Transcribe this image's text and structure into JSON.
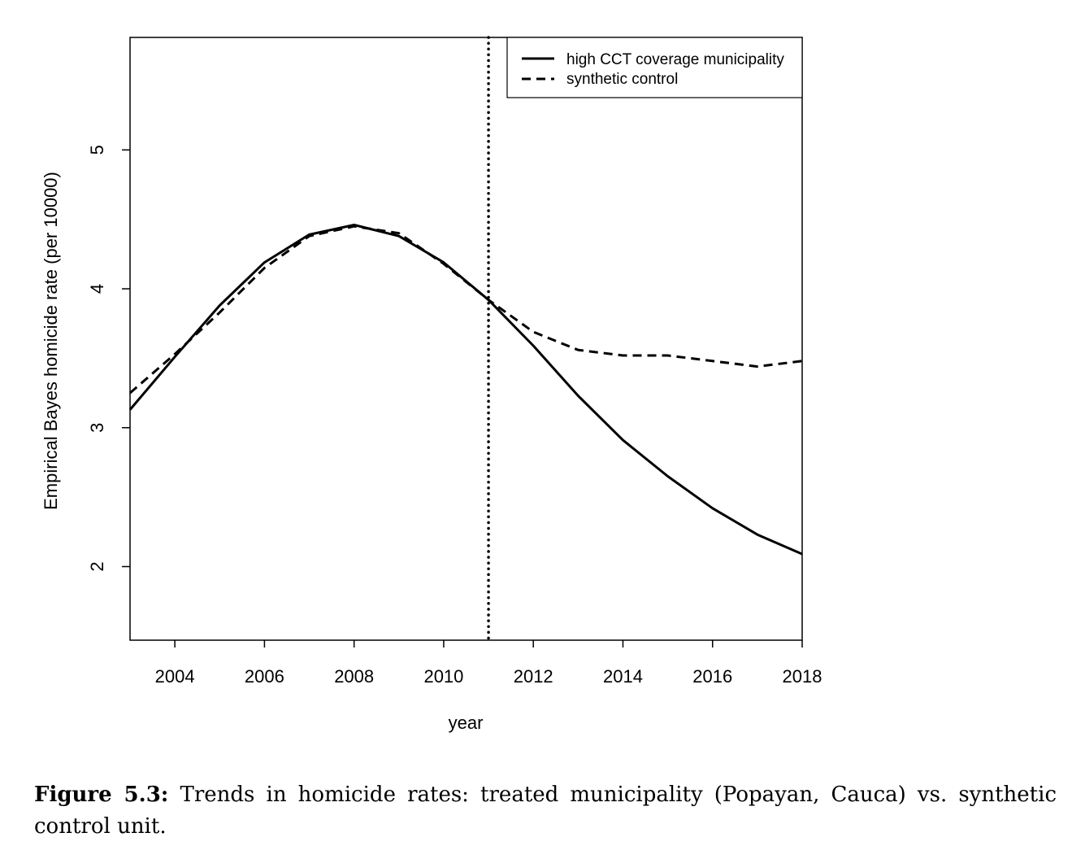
{
  "chart_data": {
    "type": "line",
    "xlabel": "year",
    "ylabel": "Empirical Bayes homicide rate (per 10000)",
    "xlim": [
      2003,
      2018
    ],
    "ylim": [
      1.47,
      5.81
    ],
    "xticks": [
      "2004",
      "2006",
      "2008",
      "2010",
      "2012",
      "2014",
      "2016",
      "2018"
    ],
    "yticks": [
      "2",
      "3",
      "4",
      "5"
    ],
    "treatment_year": 2011,
    "legend_position": "top-right",
    "x": [
      2003,
      2004,
      2005,
      2006,
      2007,
      2008,
      2009,
      2010,
      2011,
      2012,
      2013,
      2014,
      2015,
      2016,
      2017,
      2018
    ],
    "series": [
      {
        "name": "high CCT coverage municipality",
        "style": "solid",
        "values": [
          3.13,
          3.51,
          3.88,
          4.19,
          4.39,
          4.46,
          4.38,
          4.19,
          3.92,
          3.59,
          3.23,
          2.91,
          2.65,
          2.42,
          2.23,
          2.09
        ]
      },
      {
        "name": "synthetic control",
        "style": "dashed",
        "values": [
          3.25,
          3.53,
          3.83,
          4.15,
          4.38,
          4.45,
          4.4,
          4.18,
          3.92,
          3.69,
          3.56,
          3.52,
          3.52,
          3.48,
          3.44,
          3.48
        ]
      }
    ]
  },
  "caption": {
    "label": "Figure 5.3:",
    "text": "Trends in homicide rates: treated municipality (Popayan, Cauca) vs. synthetic control unit."
  }
}
